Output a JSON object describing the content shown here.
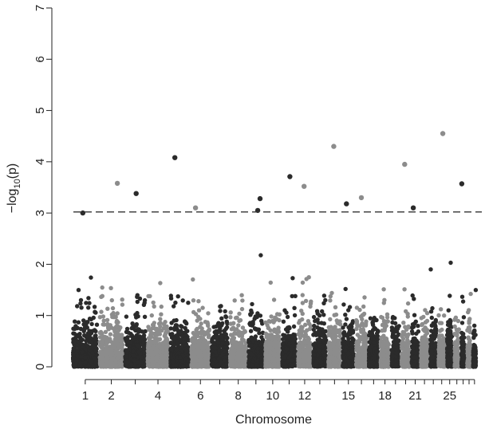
{
  "chart_data": {
    "type": "scatter",
    "subtype": "manhattan",
    "title": "",
    "xlabel": "Chromosome",
    "ylabel": "-log10(p)",
    "ylabel_parts": {
      "prefix": "−log",
      "sub": "10",
      "suffix": "(p)"
    },
    "ylim": [
      0,
      7
    ],
    "y_ticks": [
      0,
      1,
      2,
      3,
      4,
      5,
      6,
      7
    ],
    "threshold": 3.02,
    "threshold_style": "dashed",
    "chromosomes": [
      1,
      2,
      3,
      4,
      5,
      6,
      7,
      8,
      9,
      10,
      11,
      12,
      13,
      14,
      15,
      16,
      17,
      18,
      19,
      20,
      21,
      22,
      23,
      24,
      25,
      26,
      27,
      28,
      29
    ],
    "x_tick_labels": [
      "1",
      "2",
      "4",
      "6",
      "8",
      "10",
      "12",
      "15",
      "18",
      "21",
      "25"
    ],
    "x_tick_chromosomes": [
      1,
      2,
      4,
      6,
      8,
      10,
      12,
      15,
      18,
      21,
      25
    ],
    "colors": {
      "odd": "#2b2b2b",
      "even": "#8c8c8c"
    },
    "top_hits": [
      {
        "chromosome": 1,
        "y": 3.0
      },
      {
        "chromosome": 2,
        "y": 3.58
      },
      {
        "chromosome": 3,
        "y": 3.38
      },
      {
        "chromosome": 5,
        "y": 4.08
      },
      {
        "chromosome": 6,
        "y": 3.1
      },
      {
        "chromosome": 9,
        "y": 3.28
      },
      {
        "chromosome": 9,
        "y": 3.05
      },
      {
        "chromosome": 11,
        "y": 3.71
      },
      {
        "chromosome": 12,
        "y": 3.52
      },
      {
        "chromosome": 14,
        "y": 4.3
      },
      {
        "chromosome": 15,
        "y": 3.18
      },
      {
        "chromosome": 16,
        "y": 3.3
      },
      {
        "chromosome": 20,
        "y": 3.95
      },
      {
        "chromosome": 21,
        "y": 3.1
      },
      {
        "chromosome": 24,
        "y": 4.55
      },
      {
        "chromosome": 27,
        "y": 3.57
      }
    ]
  }
}
